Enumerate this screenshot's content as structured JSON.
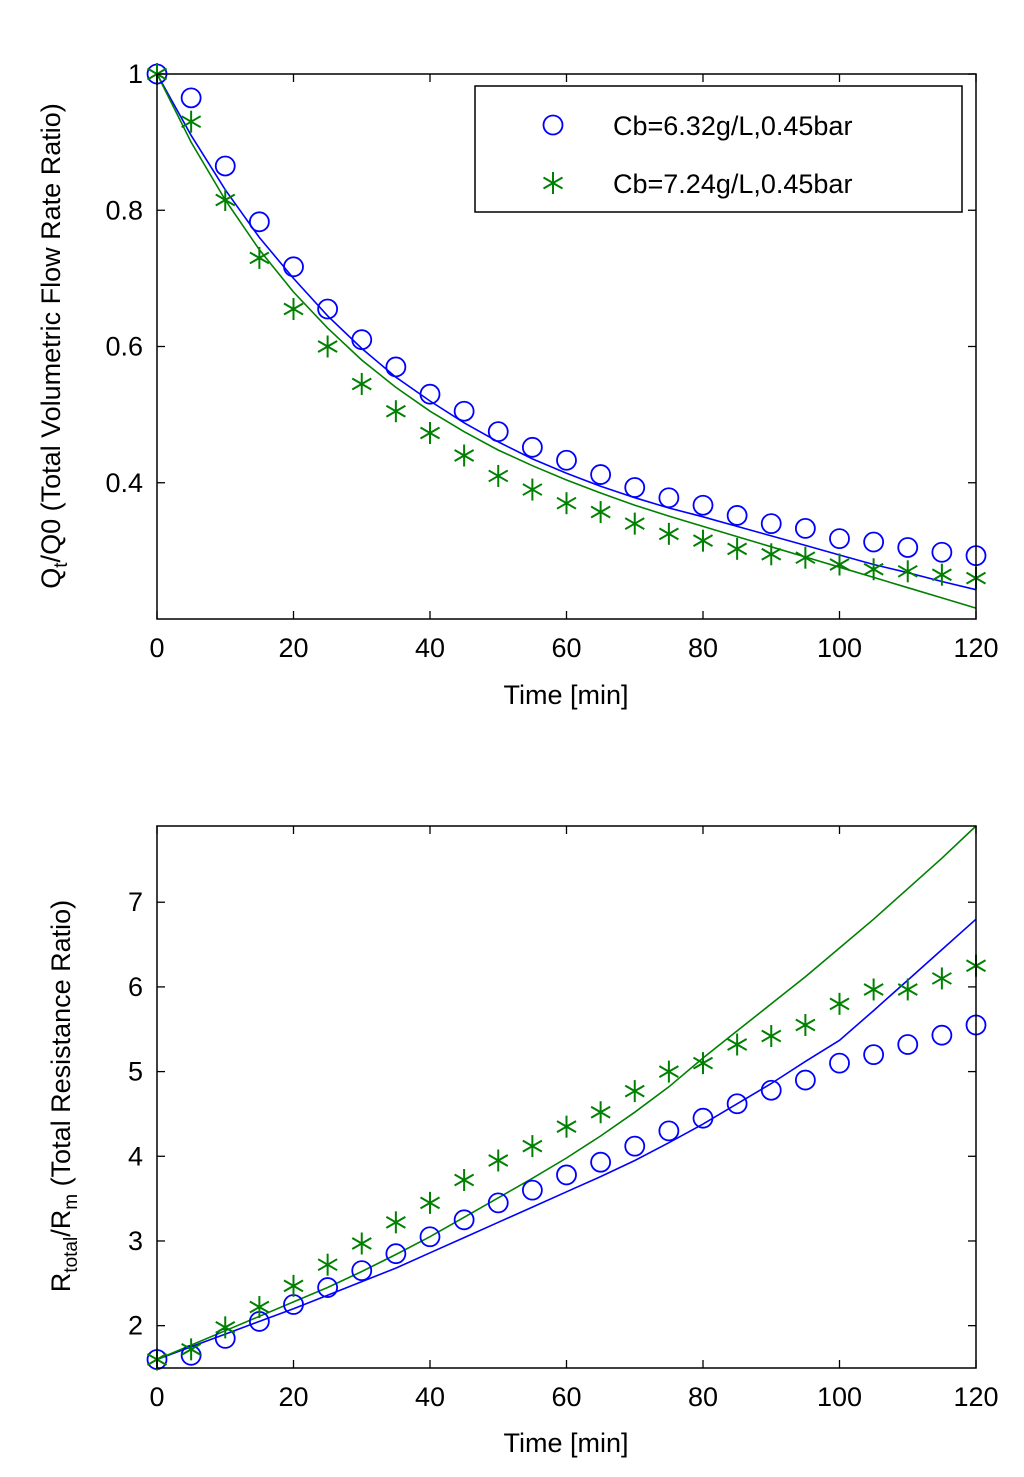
{
  "colors": {
    "series1": "#0000ff",
    "series2": "#008000",
    "axis": "#000000",
    "background": "#ffffff"
  },
  "chart_data": [
    {
      "type": "scatter",
      "title": "",
      "xlabel": "Time [min]",
      "ylabel_main": "Q",
      "ylabel_sub": "t",
      "ylabel_rest": "/Q0 (Total Volumetric Flow Rate Ratio)",
      "xlim": [
        0,
        120
      ],
      "ylim": [
        0.2,
        1.0
      ],
      "xticks": [
        "0",
        "20",
        "40",
        "60",
        "80",
        "100",
        "120"
      ],
      "yticks": [
        "0.4",
        "0.6",
        "0.8",
        "1"
      ],
      "legend": "top-right",
      "series": [
        {
          "name": "Cb=6.32g/L,0.45bar",
          "marker": "circle",
          "color": "#0000ff",
          "x": [
            0,
            5,
            10,
            15,
            20,
            25,
            30,
            35,
            40,
            45,
            50,
            55,
            60,
            65,
            70,
            75,
            80,
            85,
            90,
            95,
            100,
            105,
            110,
            115,
            120
          ],
          "y": [
            1.0,
            0.965,
            0.865,
            0.783,
            0.717,
            0.655,
            0.61,
            0.57,
            0.53,
            0.505,
            0.475,
            0.452,
            0.433,
            0.412,
            0.393,
            0.378,
            0.367,
            0.352,
            0.34,
            0.333,
            0.318,
            0.313,
            0.305,
            0.298,
            0.293
          ],
          "fit_y": [
            1.0,
            0.91,
            0.83,
            0.76,
            0.7,
            0.645,
            0.597,
            0.555,
            0.52,
            0.488,
            0.46,
            0.435,
            0.414,
            0.395,
            0.378,
            0.363,
            0.35,
            0.336,
            0.322,
            0.308,
            0.294,
            0.28,
            0.268,
            0.255,
            0.243
          ]
        },
        {
          "name": "Cb=7.24g/L,0.45bar",
          "marker": "star",
          "color": "#008000",
          "x": [
            0,
            5,
            10,
            15,
            20,
            25,
            30,
            35,
            40,
            45,
            50,
            55,
            60,
            65,
            70,
            75,
            80,
            85,
            90,
            95,
            100,
            105,
            110,
            115,
            120
          ],
          "y": [
            1.0,
            0.93,
            0.815,
            0.73,
            0.655,
            0.6,
            0.545,
            0.505,
            0.473,
            0.44,
            0.41,
            0.39,
            0.37,
            0.357,
            0.34,
            0.325,
            0.315,
            0.303,
            0.295,
            0.29,
            0.28,
            0.273,
            0.27,
            0.265,
            0.26
          ],
          "fit_y": [
            1.0,
            0.9,
            0.815,
            0.742,
            0.68,
            0.627,
            0.58,
            0.54,
            0.505,
            0.475,
            0.448,
            0.425,
            0.404,
            0.385,
            0.367,
            0.351,
            0.336,
            0.321,
            0.306,
            0.291,
            0.276,
            0.261,
            0.246,
            0.231,
            0.216
          ]
        }
      ]
    },
    {
      "type": "scatter",
      "title": "",
      "xlabel": "Time [min]",
      "ylabel_main": "R",
      "ylabel_sub": "total",
      "ylabel_mid": "/R",
      "ylabel_sub2": "m",
      "ylabel_rest": " (Total Resistance Ratio)",
      "xlim": [
        0,
        120
      ],
      "ylim": [
        1.5,
        7.9
      ],
      "xticks": [
        "0",
        "20",
        "40",
        "60",
        "80",
        "100",
        "120"
      ],
      "yticks": [
        "2",
        "3",
        "4",
        "5",
        "6",
        "7"
      ],
      "legend": "none",
      "series": [
        {
          "name": "Cb=6.32g/L,0.45bar",
          "marker": "circle",
          "color": "#0000ff",
          "x": [
            0,
            5,
            10,
            15,
            20,
            25,
            30,
            35,
            40,
            45,
            50,
            55,
            60,
            65,
            70,
            75,
            80,
            85,
            90,
            95,
            100,
            105,
            110,
            115,
            120
          ],
          "y": [
            1.6,
            1.65,
            1.85,
            2.05,
            2.25,
            2.45,
            2.65,
            2.85,
            3.05,
            3.25,
            3.45,
            3.6,
            3.78,
            3.93,
            4.12,
            4.3,
            4.45,
            4.62,
            4.78,
            4.9,
            5.1,
            5.2,
            5.32,
            5.43,
            5.55
          ],
          "fit_y": [
            1.6,
            1.75,
            1.9,
            2.05,
            2.2,
            2.36,
            2.52,
            2.68,
            2.86,
            3.04,
            3.22,
            3.4,
            3.58,
            3.76,
            3.95,
            4.16,
            4.38,
            4.62,
            4.86,
            5.12,
            5.37,
            5.72,
            6.08,
            6.44,
            6.8
          ]
        },
        {
          "name": "Cb=7.24g/L,0.45bar",
          "marker": "star",
          "color": "#008000",
          "x": [
            0,
            5,
            10,
            15,
            20,
            25,
            30,
            35,
            40,
            45,
            50,
            55,
            60,
            65,
            70,
            75,
            80,
            85,
            90,
            95,
            100,
            105,
            110,
            115,
            120
          ],
          "y": [
            1.6,
            1.72,
            1.98,
            2.22,
            2.47,
            2.72,
            2.97,
            3.22,
            3.45,
            3.72,
            3.95,
            4.12,
            4.35,
            4.52,
            4.77,
            5.0,
            5.1,
            5.32,
            5.42,
            5.55,
            5.8,
            5.97,
            5.97,
            6.1,
            6.25
          ],
          "fit_y": [
            1.6,
            1.77,
            1.94,
            2.11,
            2.28,
            2.45,
            2.64,
            2.84,
            3.05,
            3.28,
            3.51,
            3.74,
            3.98,
            4.24,
            4.52,
            4.82,
            5.16,
            5.48,
            5.8,
            6.12,
            6.46,
            6.8,
            7.16,
            7.52,
            7.9
          ]
        }
      ]
    }
  ]
}
